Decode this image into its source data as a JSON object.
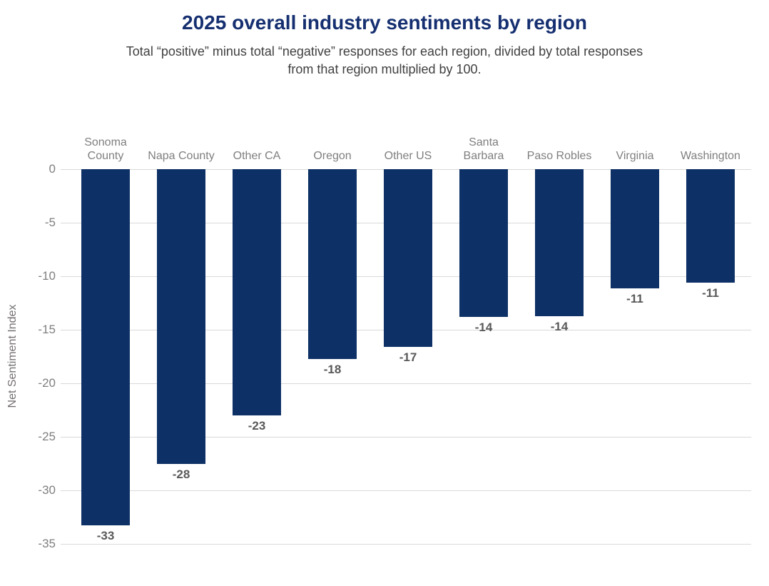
{
  "chart_data": {
    "type": "bar",
    "title": "2025 overall industry sentiments by region",
    "subtitle": "Total “positive” minus total “negative” responses for each region, divided by total responses from that region multiplied by 100.",
    "xlabel": "",
    "ylabel": "Net Sentiment Index",
    "ylim": [
      -35,
      0
    ],
    "yticks": [
      "0",
      "-5",
      "-10",
      "-15",
      "-20",
      "-25",
      "-30",
      "-35"
    ],
    "grid": true,
    "legend": "none",
    "bar_color": "#0d3166",
    "categories": [
      "Sonoma County",
      "Napa County",
      "Other CA",
      "Oregon",
      "Other US",
      "Santa Barbara",
      "Paso Robles",
      "Virginia",
      "Washington"
    ],
    "category_lines": [
      [
        "Sonoma",
        "County"
      ],
      [
        "Napa County"
      ],
      [
        "Other CA"
      ],
      [
        "Oregon"
      ],
      [
        "Other US"
      ],
      [
        "Santa",
        "Barbara"
      ],
      [
        "Paso Robles"
      ],
      [
        "Virginia"
      ],
      [
        "Washington"
      ]
    ],
    "values": [
      -33,
      -28,
      -23,
      -18,
      -17,
      -14,
      -14,
      -11,
      -11
    ],
    "plotted_values": [
      -33.3,
      -27.5,
      -23.0,
      -17.7,
      -16.6,
      -13.8,
      -13.7,
      -11.1,
      -10.6
    ],
    "data_labels": [
      "-33",
      "-28",
      "-23",
      "-18",
      "-17",
      "-14",
      "-14",
      "-11",
      "-11"
    ]
  },
  "colors": {
    "bar": "#0d3166",
    "title": "#152f70",
    "subtitle": "#404040",
    "axis_labels": "#7f7f7f",
    "value_labels": "#595959",
    "gridline": "#d9d9d9",
    "background": "#ffffff"
  }
}
